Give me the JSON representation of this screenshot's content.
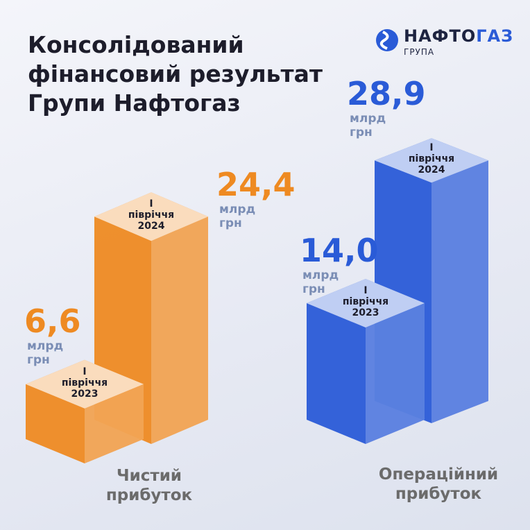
{
  "chart_data": {
    "type": "bar3d",
    "title": [
      "Консолідований",
      "фінансовий результат",
      "Групи Нафтогаз"
    ],
    "logo": {
      "name": [
        "НАФТО",
        "ГАЗ"
      ],
      "subtitle": "ГРУПА"
    },
    "categories": [
      "Чистий прибуток",
      "Операційний прибуток"
    ],
    "colors": [
      "#ee8a22",
      "#2a5bd7"
    ],
    "unit": "млрд грн",
    "series": [
      {
        "name": "І півріччя 2023",
        "values": [
          6.6,
          14.0
        ],
        "value_labels": [
          "6,6",
          "14,0"
        ]
      },
      {
        "name": "І півріччя 2024",
        "values": [
          24.4,
          28.9
        ],
        "value_labels": [
          "24,4",
          "28,9"
        ]
      }
    ]
  }
}
